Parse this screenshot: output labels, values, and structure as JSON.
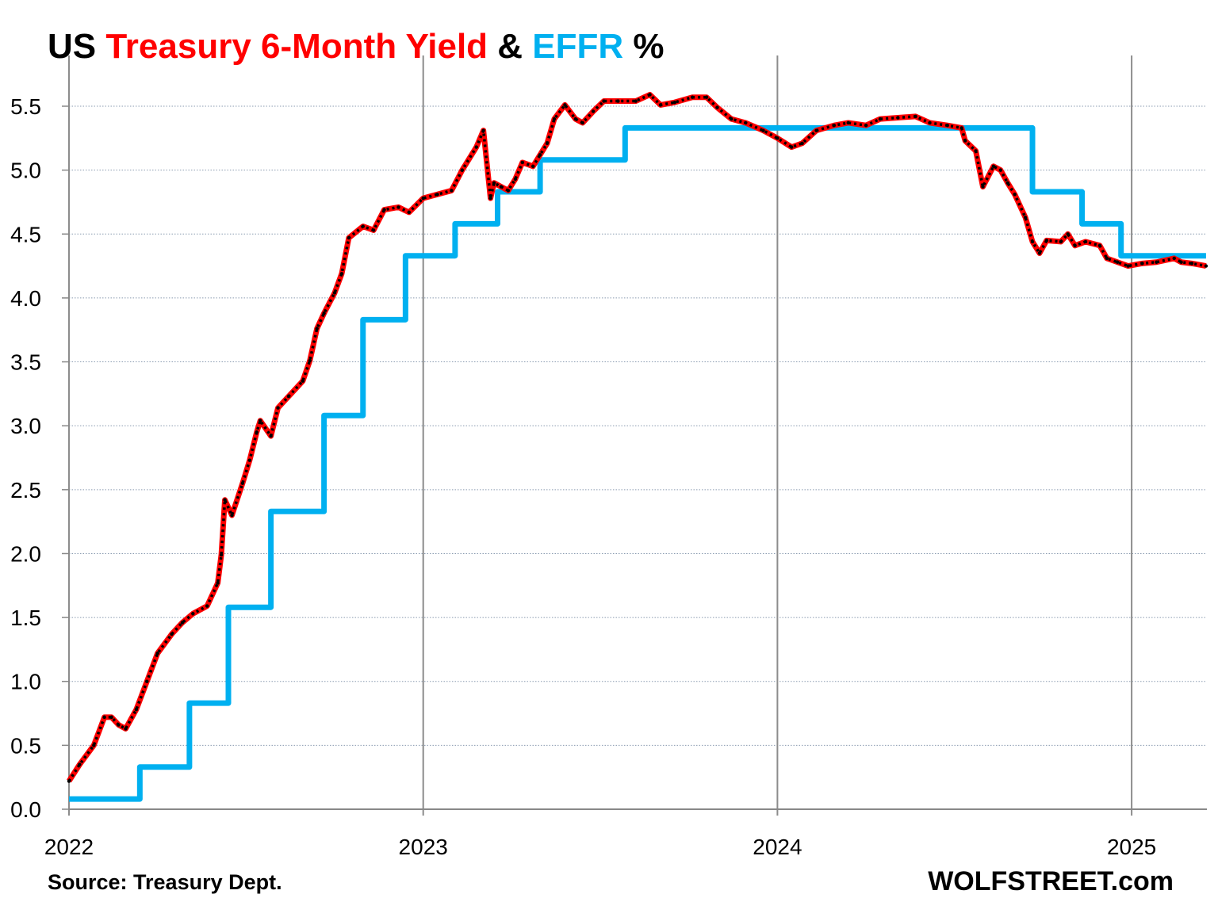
{
  "chart_data": {
    "type": "line",
    "title_parts": [
      {
        "text": "US ",
        "color": "#000000"
      },
      {
        "text": "Treasury 6-Month Yield",
        "color": "#ff0000"
      },
      {
        "text": " & ",
        "color": "#000000"
      },
      {
        "text": "EFFR",
        "color": "#00b0f0"
      },
      {
        "text": " %",
        "color": "#000000"
      }
    ],
    "xlabel": "",
    "ylabel": "",
    "xlim": [
      2022.0,
      2025.21
    ],
    "ylim": [
      0,
      5.5
    ],
    "x_ticks": [
      2022,
      2023,
      2024,
      2025
    ],
    "x_tick_labels": [
      "2022",
      "2023",
      "2024",
      "2025"
    ],
    "y_ticks": [
      0,
      0.5,
      1,
      1.5,
      2,
      2.5,
      3,
      3.5,
      4,
      4.5,
      5,
      5.5
    ],
    "y_tick_labels": [
      "0.0",
      "0.5",
      "1.0",
      "1.5",
      "2.0",
      "2.5",
      "3.0",
      "3.5",
      "4.0",
      "4.5",
      "5.0",
      "5.5"
    ],
    "grid": {
      "horizontal": "dotted",
      "vertical": "years"
    },
    "legend": "none (title colored)",
    "series": [
      {
        "name": "Treasury 6-Month Yield",
        "color": "#ff0000",
        "overlay_color": "#000000",
        "style": "line",
        "x": [
          2022.0,
          2022.03,
          2022.07,
          2022.1,
          2022.12,
          2022.14,
          2022.16,
          2022.19,
          2022.22,
          2022.25,
          2022.29,
          2022.32,
          2022.35,
          2022.39,
          2022.42,
          2022.43,
          2022.44,
          2022.46,
          2022.49,
          2022.51,
          2022.53,
          2022.54,
          2022.57,
          2022.59,
          2022.62,
          2022.66,
          2022.68,
          2022.7,
          2022.72,
          2022.75,
          2022.77,
          2022.79,
          2022.83,
          2022.86,
          2022.89,
          2022.93,
          2022.96,
          2023.0,
          2023.04,
          2023.08,
          2023.11,
          2023.15,
          2023.17,
          2023.19,
          2023.2,
          2023.22,
          2023.24,
          2023.26,
          2023.28,
          2023.31,
          2023.33,
          2023.35,
          2023.37,
          2023.4,
          2023.43,
          2023.45,
          2023.48,
          2023.51,
          2023.55,
          2023.6,
          2023.64,
          2023.67,
          2023.71,
          2023.76,
          2023.8,
          2023.83,
          2023.87,
          2023.91,
          2023.96,
          2024.0,
          2024.04,
          2024.07,
          2024.11,
          2024.16,
          2024.2,
          2024.25,
          2024.29,
          2024.34,
          2024.39,
          2024.43,
          2024.48,
          2024.52,
          2024.53,
          2024.56,
          2024.58,
          2024.61,
          2024.63,
          2024.65,
          2024.67,
          2024.7,
          2024.72,
          2024.74,
          2024.76,
          2024.8,
          2024.82,
          2024.84,
          2024.87,
          2024.91,
          2024.93,
          2024.96,
          2024.99,
          2025.03,
          2025.07,
          2025.12,
          2025.14,
          2025.17,
          2025.21
        ],
        "values": [
          0.22,
          0.35,
          0.5,
          0.72,
          0.72,
          0.66,
          0.63,
          0.78,
          1.0,
          1.22,
          1.37,
          1.46,
          1.53,
          1.59,
          1.77,
          1.99,
          2.42,
          2.3,
          2.55,
          2.73,
          2.95,
          3.04,
          2.92,
          3.14,
          3.23,
          3.35,
          3.51,
          3.76,
          3.88,
          4.04,
          4.19,
          4.47,
          4.56,
          4.53,
          4.69,
          4.71,
          4.67,
          4.78,
          4.81,
          4.84,
          5.0,
          5.18,
          5.31,
          4.78,
          4.9,
          4.87,
          4.84,
          4.93,
          5.06,
          5.03,
          5.12,
          5.21,
          5.4,
          5.51,
          5.4,
          5.37,
          5.46,
          5.54,
          5.54,
          5.54,
          5.59,
          5.51,
          5.53,
          5.57,
          5.57,
          5.49,
          5.4,
          5.37,
          5.31,
          5.25,
          5.18,
          5.21,
          5.31,
          5.35,
          5.37,
          5.35,
          5.4,
          5.41,
          5.42,
          5.37,
          5.35,
          5.33,
          5.23,
          5.15,
          4.87,
          5.03,
          5.0,
          4.9,
          4.81,
          4.63,
          4.44,
          4.35,
          4.45,
          4.44,
          4.5,
          4.41,
          4.44,
          4.41,
          4.31,
          4.28,
          4.25,
          4.27,
          4.28,
          4.31,
          4.28,
          4.27,
          4.25
        ]
      },
      {
        "name": "EFFR",
        "color": "#00b0f0",
        "style": "step",
        "x": [
          2022.0,
          2022.2,
          2022.34,
          2022.45,
          2022.57,
          2022.72,
          2022.83,
          2022.95,
          2023.09,
          2023.21,
          2023.33,
          2023.57,
          2024.72,
          2024.86,
          2024.97,
          2025.21
        ],
        "values": [
          0.08,
          0.33,
          0.83,
          1.58,
          2.33,
          3.08,
          3.83,
          4.33,
          4.58,
          4.83,
          5.08,
          5.33,
          4.83,
          4.58,
          4.33,
          4.33
        ]
      }
    ]
  },
  "footer": {
    "source": "Source: Treasury Dept.",
    "brand": "WOLFSTREET.com"
  }
}
